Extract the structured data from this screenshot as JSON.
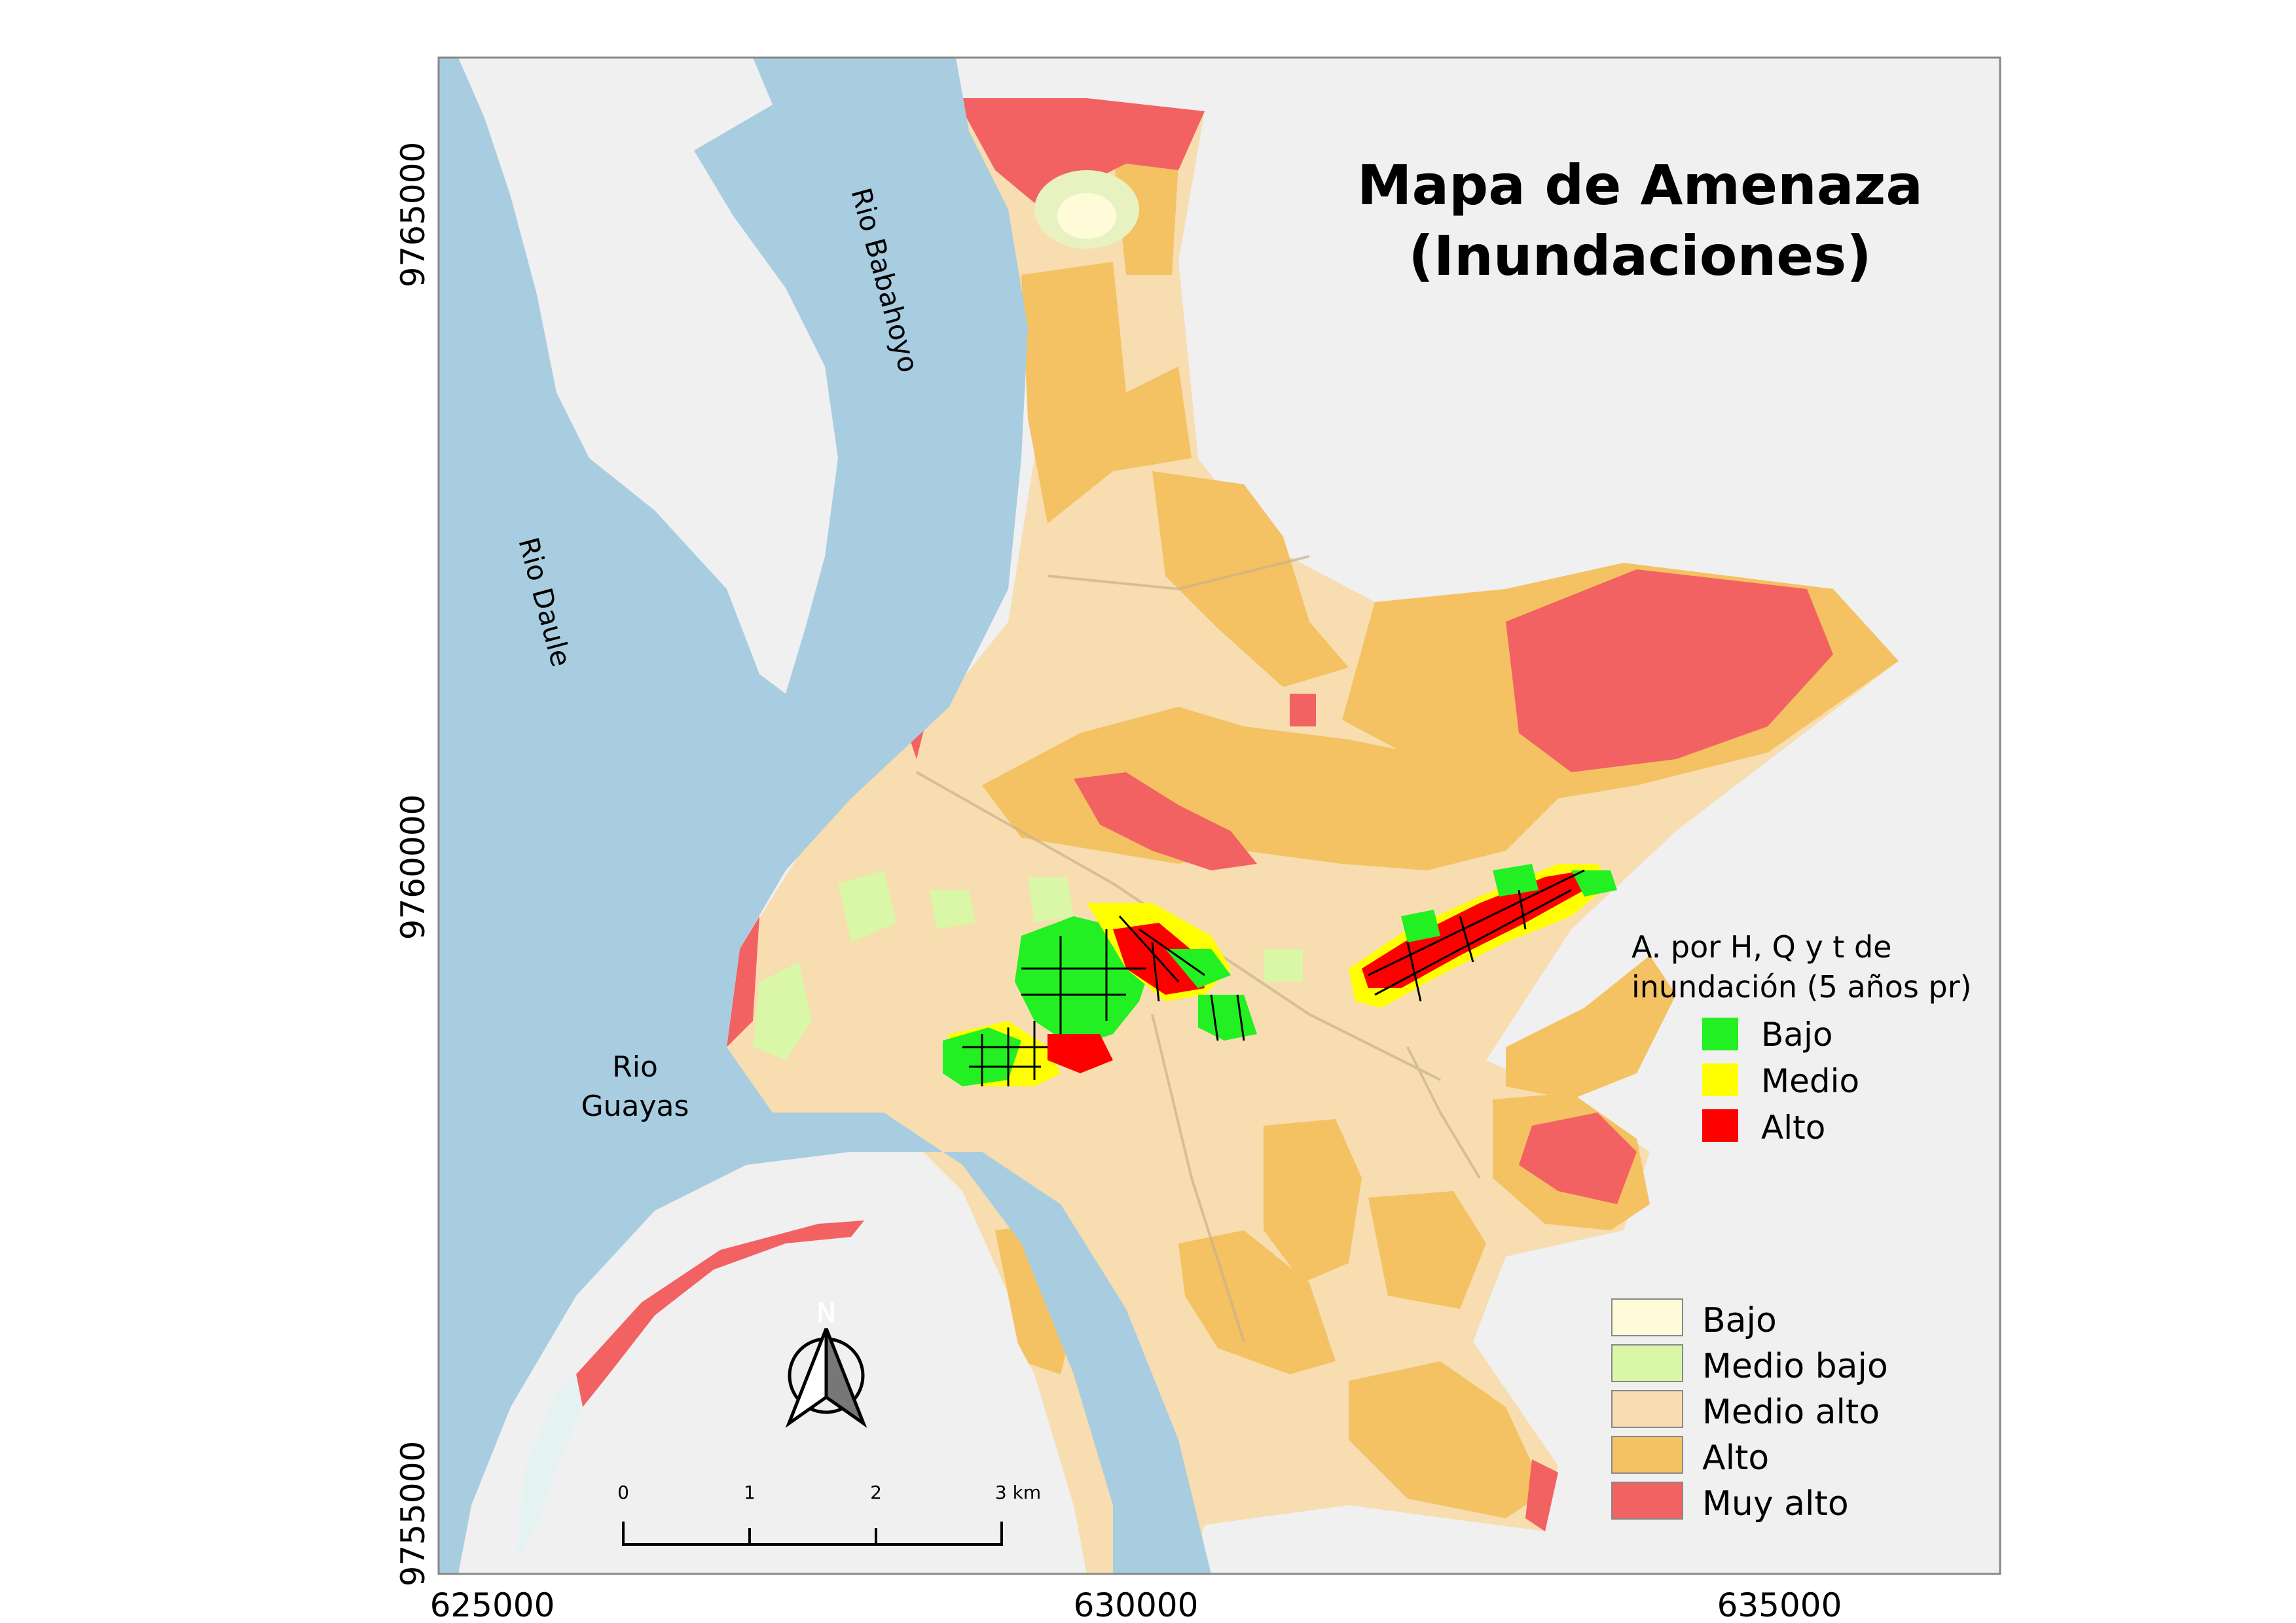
{
  "map": {
    "title_line1": "Mapa de  Amenaza",
    "title_line2": "(Inundaciones)",
    "colors": {
      "background": "#f0f0f0",
      "water": "#a8cde0",
      "bajo": "#fffbd9",
      "medio_bajo": "#d9f7a6",
      "medio_alto": "#f7ddb0",
      "alto": "#f4c262",
      "muy_alto": "#f26262",
      "zone_bajo": "#22f022",
      "zone_medio": "#ffff00",
      "zone_alto": "#ff0000"
    },
    "rivers": {
      "daule": "Rio Daule",
      "babahoyo": "Rio Babahoyo",
      "guayas_line1": "Rio",
      "guayas_line2": "Guayas"
    },
    "axes": {
      "x_ticks": [
        "625000",
        "630000",
        "635000"
      ],
      "y_ticks": [
        "9765000",
        "9760000",
        "9755000"
      ]
    },
    "north_label": "N",
    "scale_bar": {
      "labels": [
        "0",
        "1",
        "2",
        "3 km"
      ]
    },
    "legend_zones": {
      "title_line1": "A.  por  H,  Q  y  t  de",
      "title_line2": "inundación (5 años pr)",
      "items": [
        {
          "label": "Bajo",
          "color": "#22f022"
        },
        {
          "label": "Medio",
          "color": "#ffff00"
        },
        {
          "label": "Alto",
          "color": "#ff0000"
        }
      ]
    },
    "legend_threat": {
      "items": [
        {
          "label": "Bajo",
          "color": "#fffbd9"
        },
        {
          "label": "Medio bajo",
          "color": "#d9f7a6"
        },
        {
          "label": "Medio alto",
          "color": "#f7ddb0"
        },
        {
          "label": "Alto",
          "color": "#f4c262"
        },
        {
          "label": "Muy alto",
          "color": "#f26262"
        }
      ]
    }
  }
}
